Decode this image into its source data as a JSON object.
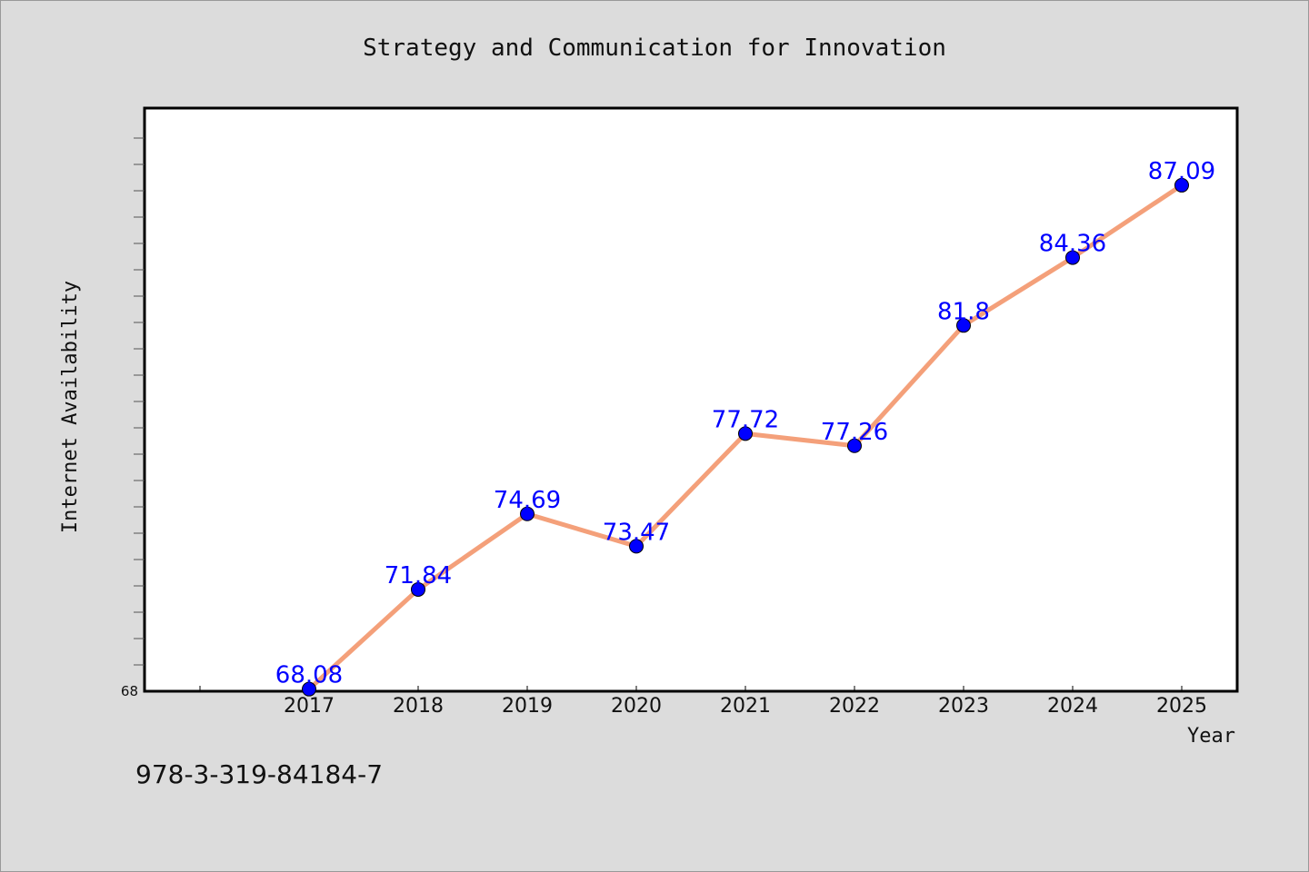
{
  "chart_data": {
    "type": "line",
    "title": "Strategy and Communication for Innovation",
    "xlabel": "Year",
    "ylabel": "Internet Availability",
    "categories": [
      "2017",
      "2018",
      "2019",
      "2020",
      "2021",
      "2022",
      "2023",
      "2024",
      "2025"
    ],
    "series": [
      {
        "values": [
          68.08,
          71.84,
          74.69,
          73.47,
          77.72,
          77.26,
          81.8,
          84.36,
          87.09
        ],
        "line_color": "#f4a07a",
        "marker_color": "#0000ff"
      }
    ],
    "data_labels": [
      "68.08",
      "71.84",
      "74.69",
      "73.47",
      "77.72",
      "77.26",
      "81.8",
      "84.36",
      "87.09"
    ],
    "yticks": [
      "68"
    ],
    "ylim": [
      68,
      90
    ],
    "grid": false,
    "legend": "none"
  },
  "footer": {
    "isbn": "978-3-319-84184-7"
  }
}
